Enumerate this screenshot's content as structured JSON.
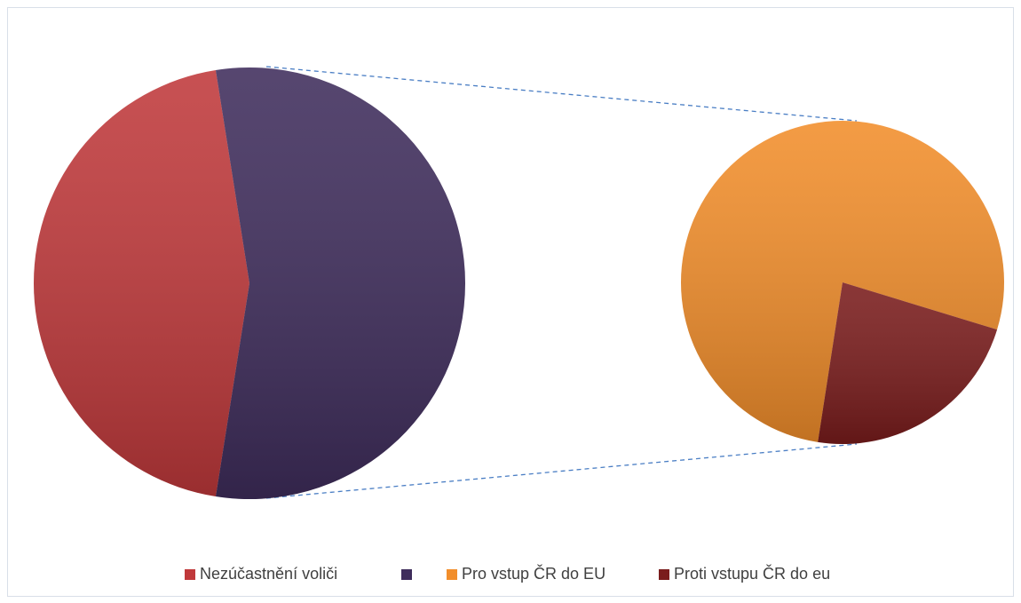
{
  "chart_data": {
    "type": "pie-of-pie",
    "categories": [
      "Nezúčastnění voliči",
      null
    ],
    "values": [
      45,
      55
    ],
    "colors": [
      "#c0393b",
      "#3f2d5c"
    ],
    "secondary": {
      "categories": [
        "Pro vstup ČR do EU",
        "Proti vstupu ČR do eu"
      ],
      "values": [
        42.5,
        12.5
      ],
      "colors": [
        "#f28e2b",
        "#7a1c1c"
      ]
    },
    "legend": "bottom"
  }
}
